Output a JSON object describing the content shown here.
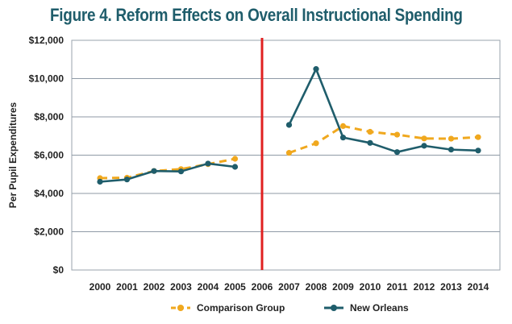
{
  "chart_data": {
    "type": "line",
    "title": "Figure 4. Reform Effects on Overall Instructional Spending",
    "xlabel": "",
    "ylabel": "Per Pupil Expenditures",
    "ylim": [
      0,
      12000
    ],
    "yticks": [
      0,
      2000,
      4000,
      6000,
      8000,
      10000,
      12000
    ],
    "ytick_labels": [
      "$0",
      "$2,000",
      "$4,000",
      "$6,000",
      "$8,000",
      "$10,000",
      "$12,000"
    ],
    "categories": [
      "2000",
      "2001",
      "2002",
      "2003",
      "2004",
      "2005",
      "2006",
      "2007",
      "2008",
      "2009",
      "2010",
      "2011",
      "2012",
      "2013",
      "2014"
    ],
    "grid": true,
    "reference_line": {
      "category": "2006",
      "color": "#e02020"
    },
    "series": [
      {
        "name": "Comparison Group",
        "color": "#f0a81e",
        "style": "dashed",
        "values": [
          4800,
          4820,
          5170,
          5270,
          5530,
          5810,
          null,
          6120,
          6620,
          7520,
          7220,
          7070,
          6870,
          6860,
          6940
        ]
      },
      {
        "name": "New Orleans",
        "color": "#1f5d6b",
        "style": "solid",
        "values": [
          4610,
          4730,
          5170,
          5150,
          5560,
          5390,
          null,
          7580,
          10500,
          6920,
          6640,
          6160,
          6490,
          6290,
          6240
        ]
      }
    ],
    "legend_position": "bottom"
  }
}
